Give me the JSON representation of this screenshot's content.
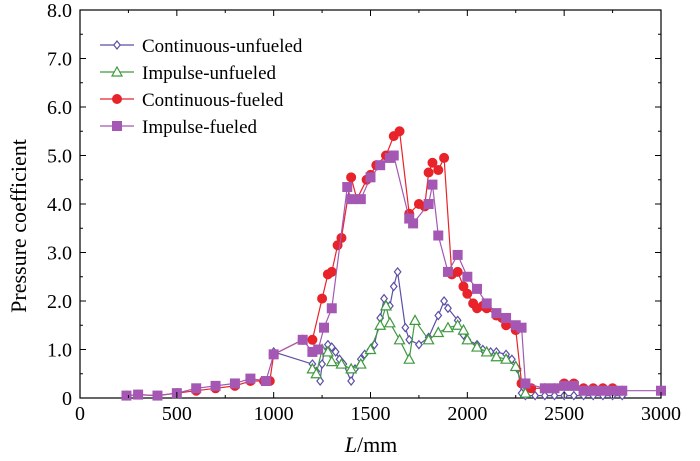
{
  "chart_data": {
    "type": "line",
    "title": "",
    "xlabel_italic": "L",
    "xlabel_unit": "/mm",
    "ylabel": "Pressure coefficient",
    "xlim": [
      0,
      3000
    ],
    "ylim": [
      0,
      8.0
    ],
    "xticks": [
      0,
      500,
      1000,
      1500,
      2000,
      2500,
      3000
    ],
    "yticks": [
      0,
      1.0,
      2.0,
      3.0,
      4.0,
      5.0,
      6.0,
      7.0,
      8.0
    ],
    "xtick_labels": [
      "0",
      "500",
      "1000",
      "1500",
      "2000",
      "2500",
      "3000"
    ],
    "ytick_labels": [
      "0",
      "1.0",
      "2.0",
      "3.0",
      "4.0",
      "5.0",
      "6.0",
      "7.0",
      "8.0"
    ],
    "grid": false,
    "legend_position": "top-left",
    "series": [
      {
        "name": "Continuous-unfueled",
        "color": "#5a4fa5",
        "marker": "diamond",
        "x": [
          1000,
          1200,
          1220,
          1240,
          1250,
          1260,
          1280,
          1300,
          1320,
          1340,
          1360,
          1400,
          1420,
          1450,
          1470,
          1500,
          1520,
          1550,
          1570,
          1600,
          1620,
          1640,
          1680,
          1700,
          1750,
          1800,
          1850,
          1880,
          1900,
          1950,
          1980,
          2000,
          2050,
          2080,
          2120,
          2150,
          2200,
          2230,
          2260,
          2280,
          2300,
          2350,
          2400,
          2450,
          2500,
          2550,
          2600,
          2650,
          2700,
          2750,
          2800
        ],
        "y": [
          0.95,
          0.7,
          0.55,
          0.35,
          0.7,
          0.95,
          1.1,
          1.05,
          0.95,
          0.8,
          0.7,
          0.35,
          0.6,
          0.8,
          0.9,
          1.0,
          1.1,
          1.65,
          2.05,
          1.9,
          2.3,
          2.6,
          1.45,
          1.2,
          1.1,
          1.25,
          1.7,
          2.0,
          1.85,
          1.6,
          1.3,
          1.2,
          1.1,
          1.0,
          0.95,
          0.95,
          0.9,
          0.8,
          0.6,
          0.1,
          0.05,
          0.05,
          0.05,
          0.05,
          0.05,
          0.05,
          0.05,
          0.05,
          0.05,
          0.05,
          0.05
        ]
      },
      {
        "name": "Impulse-unfueled",
        "color": "#3e9a3e",
        "marker": "triangle",
        "x": [
          1200,
          1220,
          1250,
          1280,
          1300,
          1350,
          1400,
          1450,
          1500,
          1550,
          1580,
          1600,
          1650,
          1700,
          1730,
          1800,
          1850,
          1900,
          1950,
          1980,
          2000,
          2050,
          2100,
          2150,
          2200,
          2250,
          2300
        ],
        "y": [
          0.6,
          0.5,
          1.0,
          0.95,
          0.75,
          0.7,
          0.6,
          0.7,
          1.0,
          1.5,
          1.9,
          1.55,
          1.2,
          0.8,
          1.6,
          1.2,
          1.35,
          1.45,
          1.5,
          1.4,
          1.2,
          1.05,
          0.95,
          0.85,
          0.8,
          0.65,
          0.1
        ]
      },
      {
        "name": "Continuous-fueled",
        "color": "#e8232a",
        "marker": "circle",
        "x": [
          240,
          300,
          400,
          500,
          600,
          700,
          800,
          880,
          950,
          980,
          1000,
          1150,
          1200,
          1250,
          1280,
          1300,
          1330,
          1350,
          1400,
          1430,
          1480,
          1500,
          1530,
          1580,
          1620,
          1650,
          1700,
          1750,
          1780,
          1800,
          1820,
          1850,
          1880,
          1920,
          1950,
          1980,
          2000,
          2030,
          2050,
          2080,
          2100,
          2150,
          2180,
          2200,
          2250,
          2280,
          2330,
          2400,
          2450,
          2500,
          2550,
          2600,
          2650,
          2700,
          2750,
          2800
        ],
        "y": [
          0.05,
          0.07,
          0.05,
          0.1,
          0.15,
          0.2,
          0.25,
          0.35,
          0.35,
          0.35,
          0.9,
          1.2,
          1.2,
          2.05,
          2.55,
          2.6,
          3.15,
          3.3,
          4.55,
          4.1,
          4.5,
          4.6,
          4.8,
          5.0,
          5.4,
          5.5,
          3.8,
          4.0,
          3.95,
          4.65,
          4.85,
          4.7,
          4.95,
          2.55,
          2.6,
          2.3,
          2.15,
          1.95,
          1.85,
          1.9,
          1.85,
          1.7,
          1.65,
          1.5,
          1.4,
          0.3,
          0.2,
          0.2,
          0.2,
          0.3,
          0.3,
          0.2,
          0.2,
          0.2,
          0.2,
          0.15
        ]
      },
      {
        "name": "Impulse-fueled",
        "color": "#a458b3",
        "marker": "square",
        "x": [
          240,
          300,
          400,
          500,
          600,
          700,
          800,
          880,
          960,
          1000,
          1150,
          1200,
          1230,
          1260,
          1300,
          1380,
          1400,
          1450,
          1500,
          1550,
          1600,
          1620,
          1700,
          1720,
          1800,
          1820,
          1850,
          1900,
          1950,
          2000,
          2050,
          2100,
          2150,
          2200,
          2250,
          2280,
          2300,
          2400,
          2450,
          2500,
          2550,
          2600,
          2650,
          2700,
          2750,
          2800,
          3000
        ],
        "y": [
          0.05,
          0.07,
          0.05,
          0.1,
          0.2,
          0.25,
          0.3,
          0.4,
          0.35,
          0.9,
          1.2,
          0.95,
          1.0,
          1.45,
          1.85,
          4.35,
          4.1,
          4.1,
          4.55,
          4.8,
          4.95,
          5.0,
          3.7,
          3.6,
          4.0,
          4.4,
          3.35,
          2.6,
          2.95,
          2.5,
          2.25,
          1.95,
          1.75,
          1.65,
          1.5,
          1.45,
          0.3,
          0.2,
          0.2,
          0.25,
          0.25,
          0.15,
          0.15,
          0.15,
          0.15,
          0.15,
          0.15
        ]
      }
    ]
  }
}
